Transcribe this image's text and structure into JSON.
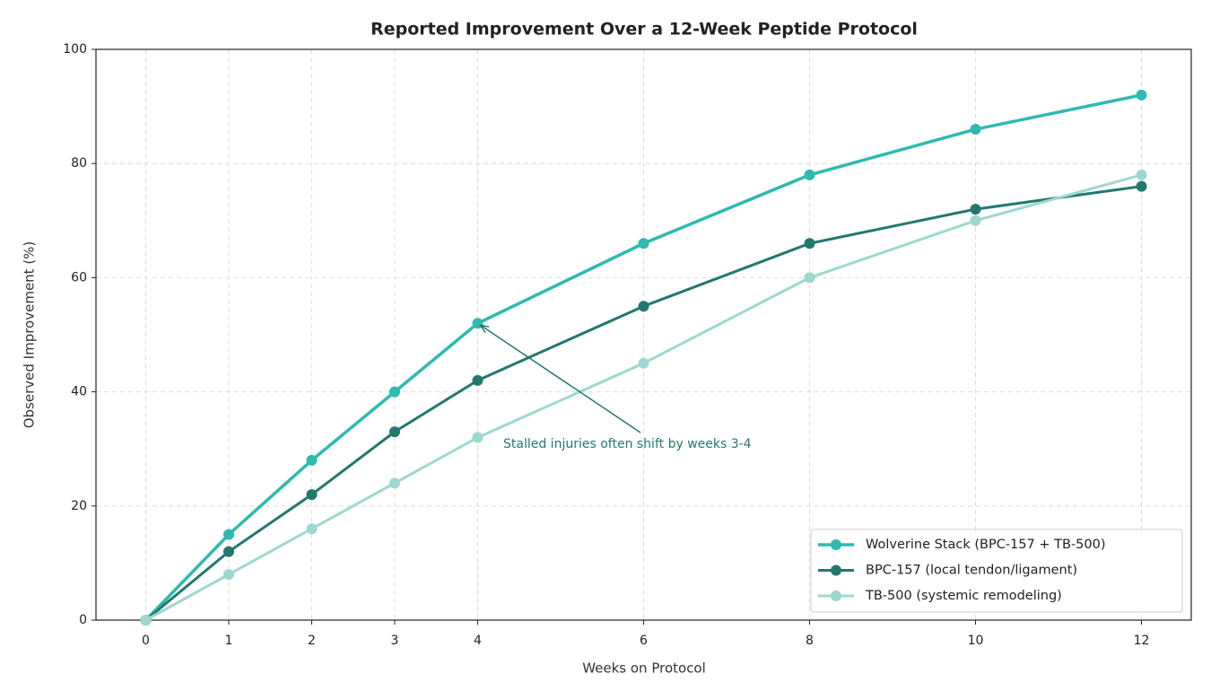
{
  "chart_data": {
    "type": "line",
    "title": "Reported Improvement Over a 12-Week Peptide Protocol",
    "x_label": "Weeks on Protocol",
    "y_label": "Observed Improvement (%)",
    "x": [
      0,
      1,
      2,
      3,
      4,
      6,
      8,
      10,
      12
    ],
    "series": [
      {
        "name": "Wolverine Stack (BPC-157 + TB-500)",
        "color": "#2dbab0",
        "values": [
          0,
          15,
          28,
          40,
          52,
          66,
          78,
          86,
          92
        ]
      },
      {
        "name": "BPC-157 (local tendon/ligament)",
        "color": "#22786f",
        "values": [
          0,
          12,
          22,
          33,
          42,
          55,
          66,
          72,
          76
        ]
      },
      {
        "name": "TB-500 (systemic remodeling)",
        "color": "#9dd8d0",
        "values": [
          0,
          8,
          16,
          24,
          32,
          45,
          60,
          70,
          78
        ]
      }
    ],
    "xlim": [
      -0.6,
      12.6
    ],
    "ylim": [
      0,
      100
    ],
    "xticks": [
      0,
      1,
      2,
      3,
      4,
      6,
      8,
      10,
      12
    ],
    "yticks": [
      0,
      20,
      40,
      60,
      80,
      100
    ],
    "grid": true,
    "legend": "lower right",
    "annotation": {
      "text": "Stalled injuries often shift by weeks 3-4",
      "color": "#22786f"
    }
  }
}
